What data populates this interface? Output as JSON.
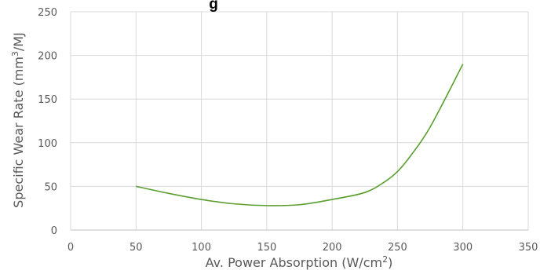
{
  "chart_data": {
    "type": "line",
    "title": "g",
    "title_note": "title partially cropped at top edge",
    "xlabel": "Av. Power Absorption (W/cm²)",
    "ylabel": "Specific  Wear Rate (mm³/MJ",
    "xlim": [
      0,
      350
    ],
    "ylim": [
      0,
      250
    ],
    "xticks": [
      0,
      50,
      100,
      150,
      200,
      250,
      300,
      350
    ],
    "yticks": [
      0,
      50,
      100,
      150,
      200,
      250
    ],
    "grid": true,
    "legend": "none",
    "series": [
      {
        "color": "#5a9e2f",
        "x": [
          50,
          75,
          100,
          125,
          150,
          175,
          200,
          225,
          240,
          250,
          260,
          275,
          300
        ],
        "y": [
          50,
          42,
          35,
          30,
          28,
          29,
          35,
          43,
          55,
          67,
          85,
          118,
          190
        ]
      }
    ]
  }
}
